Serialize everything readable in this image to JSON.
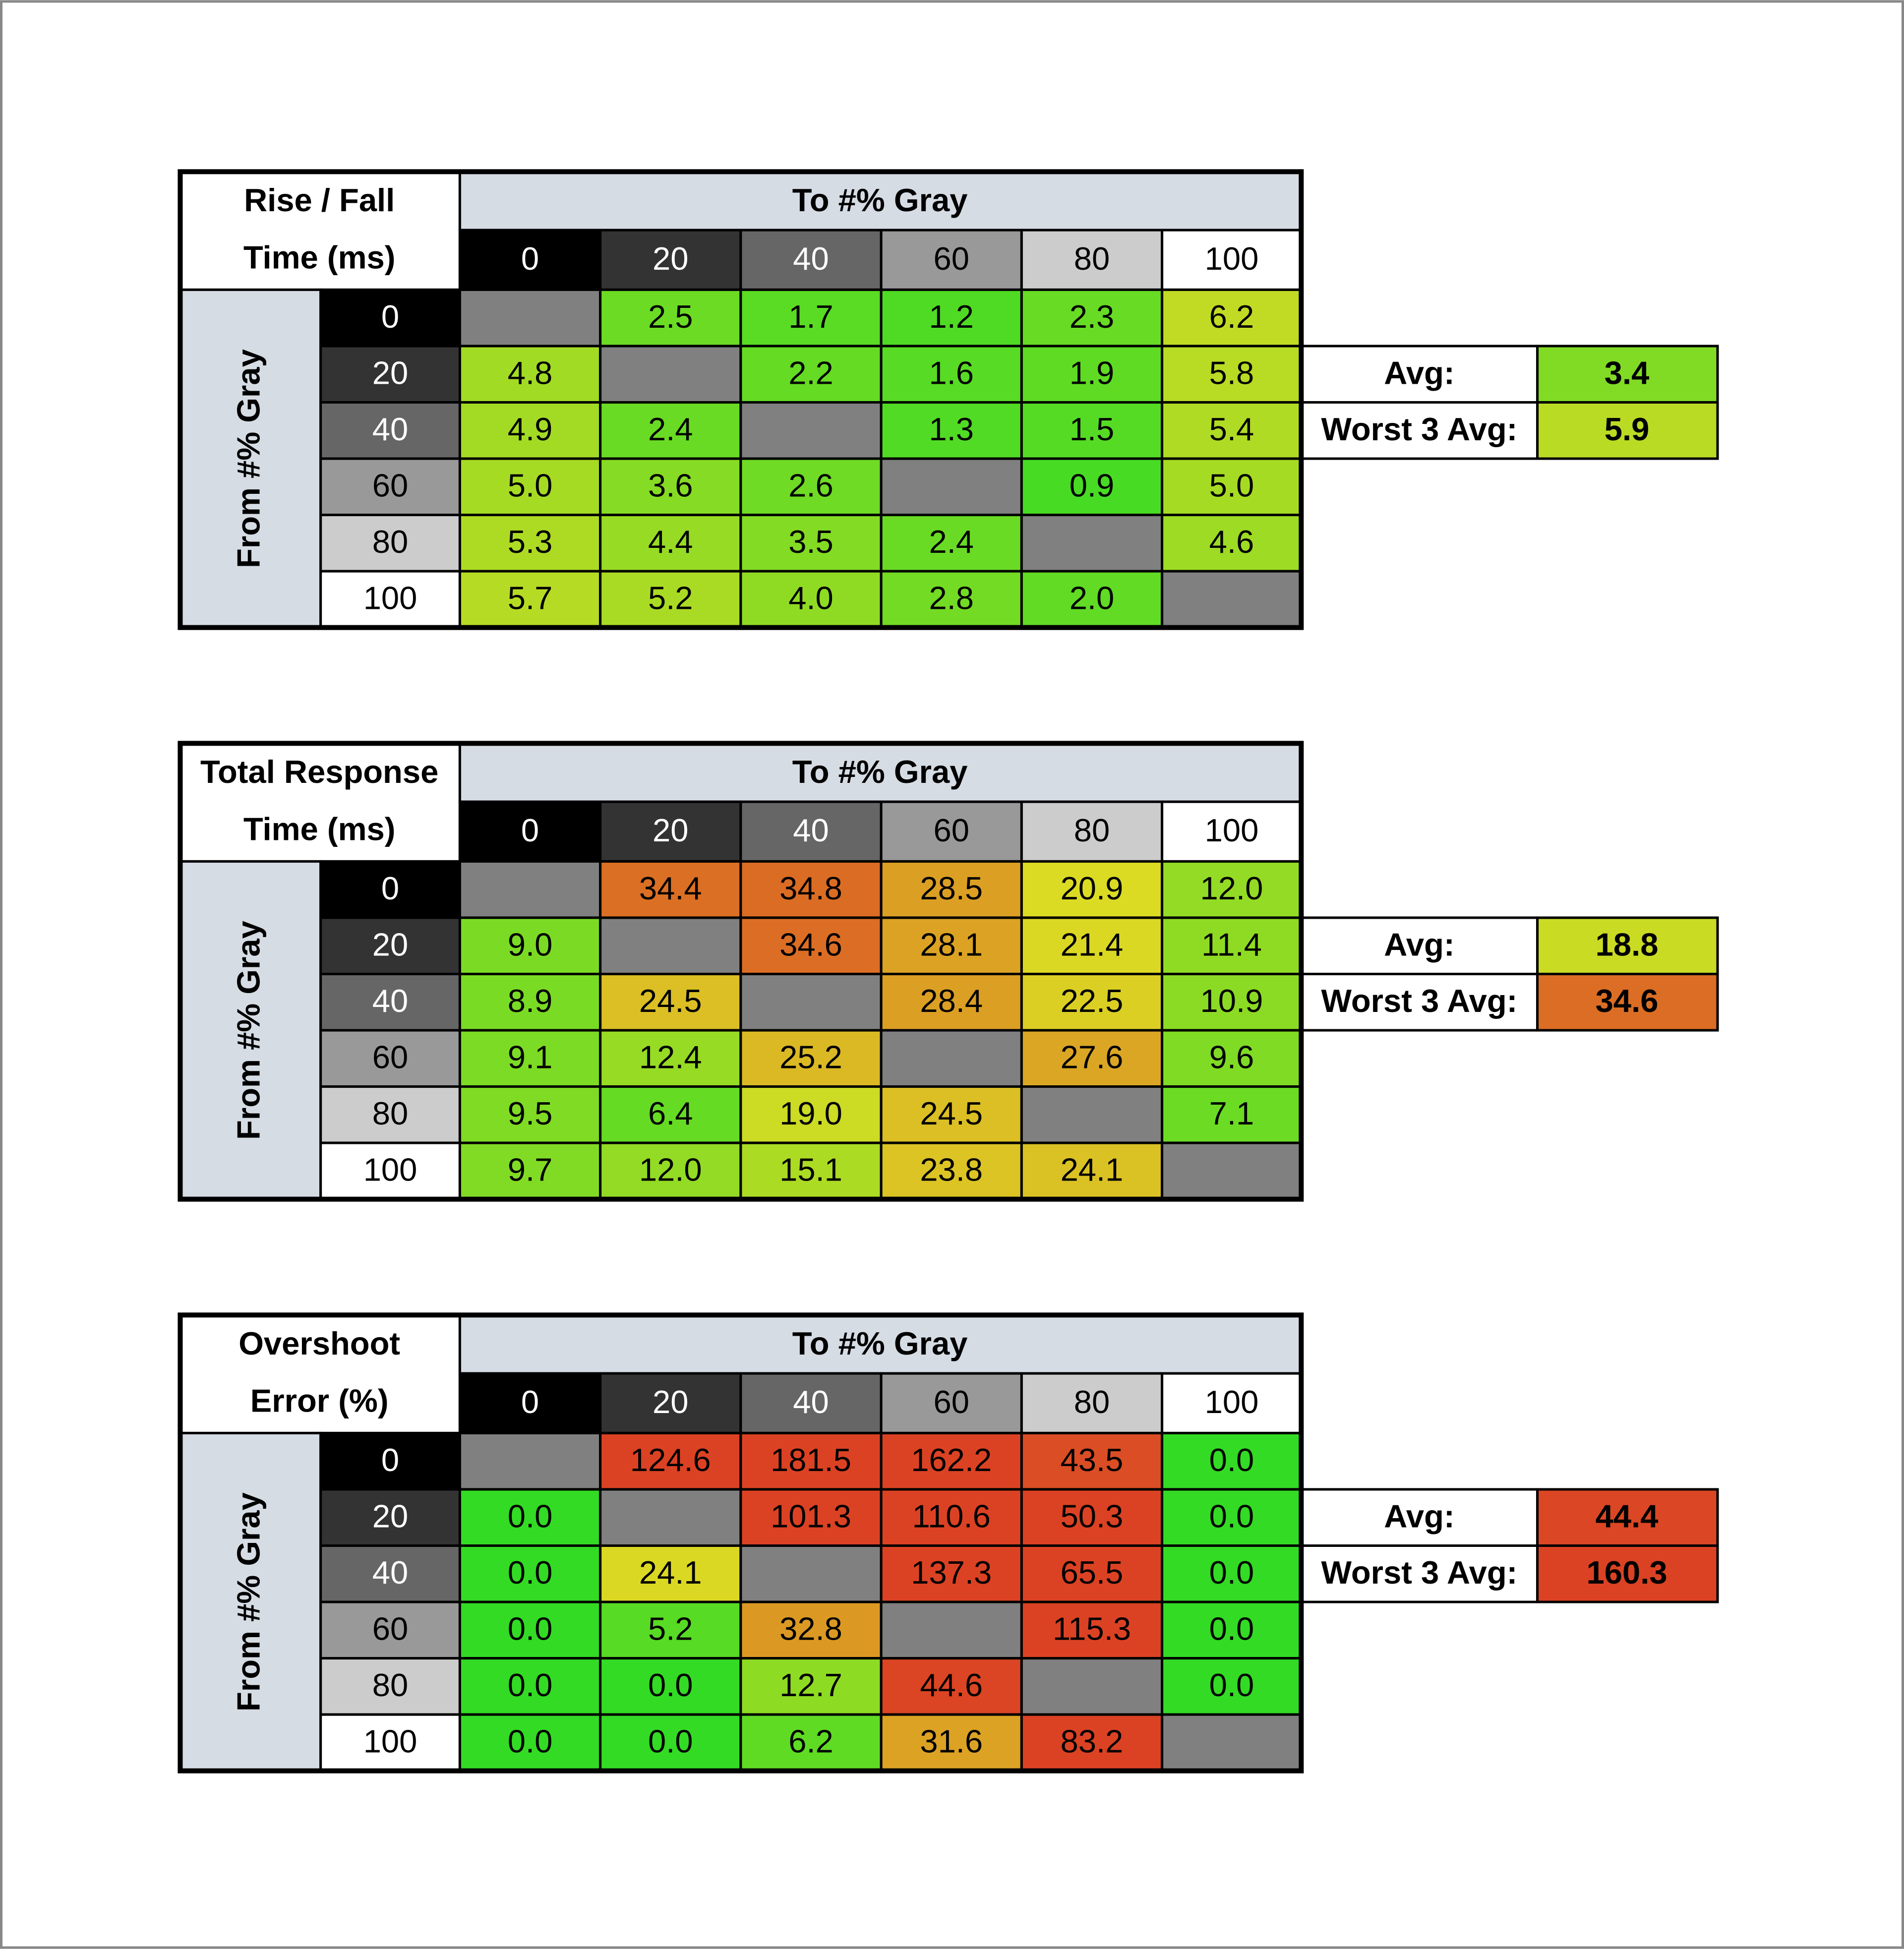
{
  "tables": [
    {
      "title": [
        "Rise / Fall",
        "Time (ms)"
      ],
      "to_label": "To #% Gray",
      "from_label": "From #% Gray",
      "columns": [
        "0",
        "20",
        "40",
        "60",
        "80",
        "100"
      ],
      "rows": [
        {
          "label": "0",
          "cells": [
            null,
            "2.5",
            "1.7",
            "1.2",
            "2.3",
            "6.2"
          ]
        },
        {
          "label": "20",
          "cells": [
            "4.8",
            null,
            "2.2",
            "1.6",
            "1.9",
            "5.8"
          ]
        },
        {
          "label": "40",
          "cells": [
            "4.9",
            "2.4",
            null,
            "1.3",
            "1.5",
            "5.4"
          ]
        },
        {
          "label": "60",
          "cells": [
            "5.0",
            "3.6",
            "2.6",
            null,
            "0.9",
            "5.0"
          ]
        },
        {
          "label": "80",
          "cells": [
            "5.3",
            "4.4",
            "3.5",
            "2.4",
            null,
            "4.6"
          ]
        },
        {
          "label": "100",
          "cells": [
            "5.7",
            "5.2",
            "4.0",
            "2.8",
            "2.0",
            null
          ]
        }
      ],
      "summary": [
        {
          "label": "Avg:",
          "value": "3.4"
        },
        {
          "label": "Worst 3 Avg:",
          "value": "5.9"
        }
      ]
    },
    {
      "title": [
        "Total Response",
        "Time (ms)"
      ],
      "to_label": "To #% Gray",
      "from_label": "From #% Gray",
      "columns": [
        "0",
        "20",
        "40",
        "60",
        "80",
        "100"
      ],
      "rows": [
        {
          "label": "0",
          "cells": [
            null,
            "34.4",
            "34.8",
            "28.5",
            "20.9",
            "12.0"
          ]
        },
        {
          "label": "20",
          "cells": [
            "9.0",
            null,
            "34.6",
            "28.1",
            "21.4",
            "11.4"
          ]
        },
        {
          "label": "40",
          "cells": [
            "8.9",
            "24.5",
            null,
            "28.4",
            "22.5",
            "10.9"
          ]
        },
        {
          "label": "60",
          "cells": [
            "9.1",
            "12.4",
            "25.2",
            null,
            "27.6",
            "9.6"
          ]
        },
        {
          "label": "80",
          "cells": [
            "9.5",
            "6.4",
            "19.0",
            "24.5",
            null,
            "7.1"
          ]
        },
        {
          "label": "100",
          "cells": [
            "9.7",
            "12.0",
            "15.1",
            "23.8",
            "24.1",
            null
          ]
        }
      ],
      "summary": [
        {
          "label": "Avg:",
          "value": "18.8"
        },
        {
          "label": "Worst 3 Avg:",
          "value": "34.6"
        }
      ]
    },
    {
      "title": [
        "Overshoot",
        "Error (%)"
      ],
      "to_label": "To #% Gray",
      "from_label": "From #% Gray",
      "columns": [
        "0",
        "20",
        "40",
        "60",
        "80",
        "100"
      ],
      "rows": [
        {
          "label": "0",
          "cells": [
            null,
            "124.6",
            "181.5",
            "162.2",
            "43.5",
            "0.0"
          ]
        },
        {
          "label": "20",
          "cells": [
            "0.0",
            null,
            "101.3",
            "110.6",
            "50.3",
            "0.0"
          ]
        },
        {
          "label": "40",
          "cells": [
            "0.0",
            "24.1",
            null,
            "137.3",
            "65.5",
            "0.0"
          ]
        },
        {
          "label": "60",
          "cells": [
            "0.0",
            "5.2",
            "32.8",
            null,
            "115.3",
            "0.0"
          ]
        },
        {
          "label": "80",
          "cells": [
            "0.0",
            "0.0",
            "12.7",
            "44.6",
            null,
            "0.0"
          ]
        },
        {
          "label": "100",
          "cells": [
            "0.0",
            "0.0",
            "6.2",
            "31.6",
            "83.2",
            null
          ]
        }
      ],
      "summary": [
        {
          "label": "Avg:",
          "value": "44.4"
        },
        {
          "label": "Worst 3 Avg:",
          "value": "160.3"
        }
      ]
    }
  ]
}
